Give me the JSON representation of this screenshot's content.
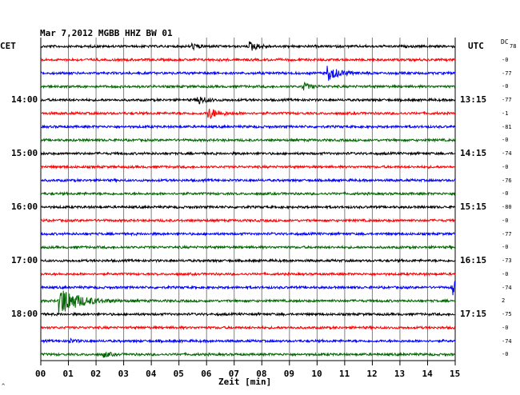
{
  "header": {
    "title": "Mar 7,2012   MGBB HHZ BW 01",
    "left_tz": "CET",
    "right_tz": "UTC",
    "dc_label": "DC"
  },
  "footer": {
    "xlabel": "Zeit [min]",
    "glyph": "^"
  },
  "colors": {
    "black": "#000000",
    "red": "#ff0000",
    "blue": "#0000ff",
    "green": "#006600",
    "grid": "#808080"
  },
  "chart_data": {
    "type": "line",
    "title": "Mar 7,2012   MGBB HHZ BW 01",
    "xlabel": "Zeit [min]",
    "ylabel": "",
    "xlim": [
      0,
      15
    ],
    "x_ticks": [
      "00",
      "01",
      "02",
      "03",
      "04",
      "05",
      "06",
      "07",
      "08",
      "09",
      "10",
      "11",
      "12",
      "13",
      "14",
      "15"
    ],
    "grid": true,
    "trace_colors": [
      "black",
      "red",
      "blue",
      "green"
    ],
    "trace_count": 24,
    "left_time_labels": [
      {
        "label": "14:00",
        "trace": 4
      },
      {
        "label": "15:00",
        "trace": 8
      },
      {
        "label": "16:00",
        "trace": 12
      },
      {
        "label": "17:00",
        "trace": 16
      },
      {
        "label": "18:00",
        "trace": 20
      }
    ],
    "right_time_labels": [
      {
        "label": "13:15",
        "trace": 4
      },
      {
        "label": "14:15",
        "trace": 8
      },
      {
        "label": "15:15",
        "trace": 12
      },
      {
        "label": "16:15",
        "trace": 16
      },
      {
        "label": "17:15",
        "trace": 20
      }
    ],
    "dc_offsets": [
      "78",
      "-0",
      "-77",
      "-0",
      "-77",
      "-1",
      "-81",
      "-0",
      "-74",
      "-0",
      "-76",
      "-0",
      "-80",
      "-0",
      "-77",
      "-0",
      "-73",
      "-0",
      "-74",
      "2",
      "-75",
      "-0",
      "-74",
      "-0"
    ],
    "events": [
      {
        "trace": 0,
        "minute": 5.5,
        "amplitude": 0.35
      },
      {
        "trace": 0,
        "minute": 7.6,
        "amplitude": 0.6
      },
      {
        "trace": 2,
        "minute": 10.4,
        "amplitude": 1.0
      },
      {
        "trace": 3,
        "minute": 9.5,
        "amplitude": 0.5
      },
      {
        "trace": 4,
        "minute": 5.7,
        "amplitude": 0.6
      },
      {
        "trace": 5,
        "minute": 6.1,
        "amplitude": 0.75
      },
      {
        "trace": 18,
        "minute": 14.9,
        "amplitude": 1.0
      },
      {
        "trace": 19,
        "minute": 0.7,
        "amplitude": 2.0
      },
      {
        "trace": 22,
        "minute": 1.0,
        "amplitude": 0.3
      },
      {
        "trace": 23,
        "minute": 2.3,
        "amplitude": 0.35
      }
    ]
  }
}
